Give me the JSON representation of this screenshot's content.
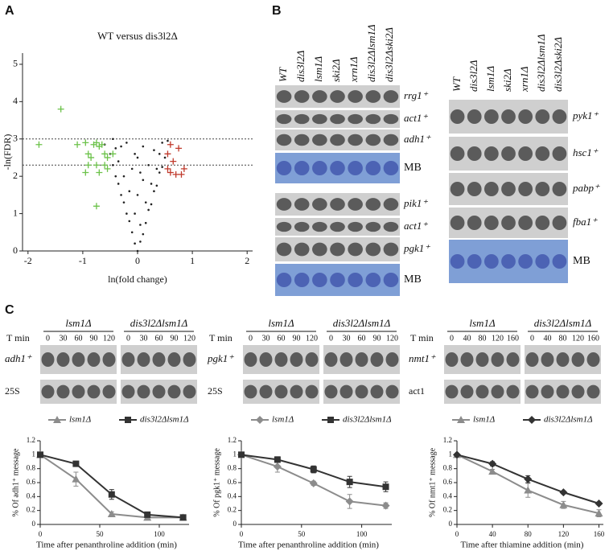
{
  "panel_labels": [
    "A",
    "B",
    "C"
  ],
  "chart_data": [
    {
      "type": "scatter",
      "title": "WT versus dis3l2Δ",
      "xlabel": "ln(fold change)",
      "ylabel": "-ln(FDR)",
      "xlim": [
        -2.1,
        2.1
      ],
      "ylim": [
        0,
        5.3
      ],
      "xticks": [
        -2,
        -1,
        0,
        1,
        2
      ],
      "yticks": [
        0,
        1,
        2,
        3,
        4,
        5
      ],
      "hlines": [
        3.0,
        2.3
      ],
      "series": [
        {
          "color": "#222222",
          "marker": "dot",
          "x": [
            0,
            -0.05,
            0.05,
            -0.1,
            0.1,
            -0.15,
            0.15,
            -0.2,
            0.2,
            -0.25,
            0.25,
            -0.3,
            0.3,
            -0.35,
            0.35,
            -0.4,
            0.4,
            -0.45,
            0.45,
            -0.5,
            0.5,
            -0.3,
            0.3,
            -0.2,
            0.1,
            0,
            -0.1,
            0.1,
            0,
            -0.05,
            0.05,
            -0.6,
            0.55,
            -0.45,
            0.2,
            -0.25,
            0.25,
            -0.35,
            0.4,
            -0.15,
            0.15,
            0.35,
            -0.4,
            0.05,
            -0.05,
            0.45
          ],
          "values": [
            0,
            0.2,
            0.25,
            0.5,
            0.45,
            0.8,
            0.75,
            1.0,
            1.1,
            1.3,
            1.25,
            1.5,
            1.6,
            1.8,
            1.75,
            2.0,
            2.1,
            2.3,
            2.25,
            2.6,
            2.5,
            2.8,
            2.7,
            2.9,
            2.8,
            2.5,
            2.2,
            1.9,
            1.5,
            1.0,
            0.7,
            2.85,
            2.95,
            3.0,
            2.3,
            2.0,
            1.8,
            2.4,
            2.6,
            1.6,
            1.3,
            2.2,
            2.75,
            2.1,
            2.6,
            2.9
          ]
        },
        {
          "color": "#6cc24a",
          "marker": "+",
          "x": [
            -1.4,
            -1.8,
            -1.1,
            -0.95,
            -0.9,
            -0.85,
            -0.8,
            -0.75,
            -0.7,
            -0.65,
            -0.6,
            -0.55,
            -0.9,
            -0.75,
            -0.95,
            -0.7,
            -0.55,
            -0.45,
            -0.6,
            -0.75
          ],
          "values": [
            3.8,
            2.85,
            2.85,
            2.9,
            2.6,
            2.5,
            2.85,
            2.9,
            2.8,
            2.85,
            2.6,
            2.5,
            2.3,
            2.3,
            2.1,
            2.1,
            2.2,
            2.6,
            2.3,
            1.2
          ]
        },
        {
          "color": "#c0392b",
          "marker": "+",
          "x": [
            0.6,
            0.75,
            0.55,
            0.65,
            0.85,
            0.6,
            0.7,
            0.8,
            0.55
          ],
          "values": [
            2.85,
            2.75,
            2.6,
            2.4,
            2.2,
            2.1,
            2.05,
            2.05,
            2.2
          ]
        }
      ]
    },
    {
      "type": "line",
      "ylabel": "% Of adh1⁺ message",
      "xlabel": "Time after penanthroline addition (min)",
      "x": [
        0,
        30,
        60,
        90,
        120
      ],
      "xlim": [
        0,
        125
      ],
      "xticks": [
        0,
        50,
        100
      ],
      "ylim": [
        0,
        1.2
      ],
      "yticks": [
        0,
        0.2,
        0.4,
        0.6,
        0.8,
        1,
        1.2
      ],
      "series": [
        {
          "name": "lsm1Δ",
          "color": "#8c8c8c",
          "marker": "triangle",
          "values": [
            1,
            0.65,
            0.15,
            0.1,
            0.1
          ],
          "errors": [
            0,
            0.1,
            0.03,
            0.02,
            0.02
          ]
        },
        {
          "name": "dis3l2Δlsm1Δ",
          "color": "#333333",
          "marker": "square",
          "values": [
            1,
            0.87,
            0.43,
            0.14,
            0.1
          ],
          "errors": [
            0,
            0.02,
            0.07,
            0.02,
            0.02
          ]
        }
      ]
    },
    {
      "type": "line",
      "ylabel": "% Of pgk1⁺ message",
      "xlabel": "Time after penanthroline addition (min)",
      "x": [
        0,
        30,
        60,
        90,
        120
      ],
      "xlim": [
        0,
        125
      ],
      "xticks": [
        0,
        50,
        100
      ],
      "ylim": [
        0,
        1.2
      ],
      "yticks": [
        0,
        0.2,
        0.4,
        0.6,
        0.8,
        1,
        1.2
      ],
      "series": [
        {
          "name": "lsm1Δ",
          "color": "#8c8c8c",
          "marker": "diamond",
          "values": [
            1,
            0.83,
            0.59,
            0.33,
            0.27
          ],
          "errors": [
            0,
            0.08,
            0.03,
            0.1,
            0.04
          ]
        },
        {
          "name": "dis3l2Δlsm1Δ",
          "color": "#333333",
          "marker": "square",
          "values": [
            1,
            0.93,
            0.79,
            0.61,
            0.54
          ],
          "errors": [
            0,
            0.04,
            0.05,
            0.08,
            0.07
          ]
        }
      ]
    },
    {
      "type": "line",
      "ylabel": "% Of nmt1⁺ message",
      "xlabel": "Time after thiamine addition (min)",
      "x": [
        0,
        40,
        80,
        120,
        160
      ],
      "xlim": [
        0,
        165
      ],
      "xticks": [
        0,
        40,
        80,
        120,
        160
      ],
      "ylim": [
        0,
        1.2
      ],
      "yticks": [
        0,
        0.2,
        0.4,
        0.6,
        0.8,
        1,
        1.2
      ],
      "series": [
        {
          "name": "lsm1Δ",
          "color": "#8c8c8c",
          "marker": "triangle",
          "values": [
            1,
            0.76,
            0.49,
            0.28,
            0.16
          ],
          "errors": [
            0,
            0.03,
            0.1,
            0.05,
            0.05
          ]
        },
        {
          "name": "dis3l2Δlsm1Δ",
          "color": "#333333",
          "marker": "diamond",
          "values": [
            1,
            0.87,
            0.65,
            0.46,
            0.3
          ],
          "errors": [
            0,
            0.03,
            0.05,
            0.02,
            0.02
          ]
        }
      ]
    }
  ],
  "blots_b": {
    "left": {
      "lanes": [
        "WT",
        "dis3l2Δ",
        "lsm1Δ",
        "ski2Δ",
        "xrn1Δ",
        "dis3l2Δlsm1Δ",
        "dis3l2Δski2Δ"
      ],
      "rows": [
        "rrg1⁺",
        "act1⁺",
        "adh1⁺",
        "MB",
        "pik1⁺",
        "act1⁺",
        "pgk1⁺",
        "MB"
      ]
    },
    "right": {
      "lanes": [
        "WT",
        "dis3l2Δ",
        "lsm1Δ",
        "ski2Δ",
        "xrn1Δ",
        "dis3l2Δlsm1Δ",
        "dis3l2Δski2Δ"
      ],
      "rows": [
        "pyk1⁺",
        "hsc1⁺",
        "pabp⁺",
        "fba1⁺",
        "MB"
      ]
    }
  },
  "blots_c": [
    {
      "groups": [
        "lsm1Δ",
        "dis3l2Δlsm1Δ"
      ],
      "time_label": "T min",
      "times": [
        [
          0,
          30,
          60,
          90,
          120
        ],
        [
          0,
          30,
          60,
          90,
          120
        ]
      ],
      "rows": [
        "adh1⁺",
        "25S"
      ]
    },
    {
      "groups": [
        "lsm1Δ",
        "dis3l2Δlsm1Δ"
      ],
      "time_label": "T min",
      "times": [
        [
          0,
          30,
          60,
          90,
          120
        ],
        [
          0,
          30,
          60,
          90,
          120
        ]
      ],
      "rows": [
        "pgk1⁺",
        "25S"
      ]
    },
    {
      "groups": [
        "lsm1Δ",
        "dis3l2Δlsm1Δ"
      ],
      "time_label": "T min",
      "times": [
        [
          0,
          40,
          80,
          120,
          160
        ],
        [
          0,
          40,
          80,
          120,
          160
        ]
      ],
      "rows": [
        "nmt1⁺",
        "act1"
      ]
    }
  ]
}
